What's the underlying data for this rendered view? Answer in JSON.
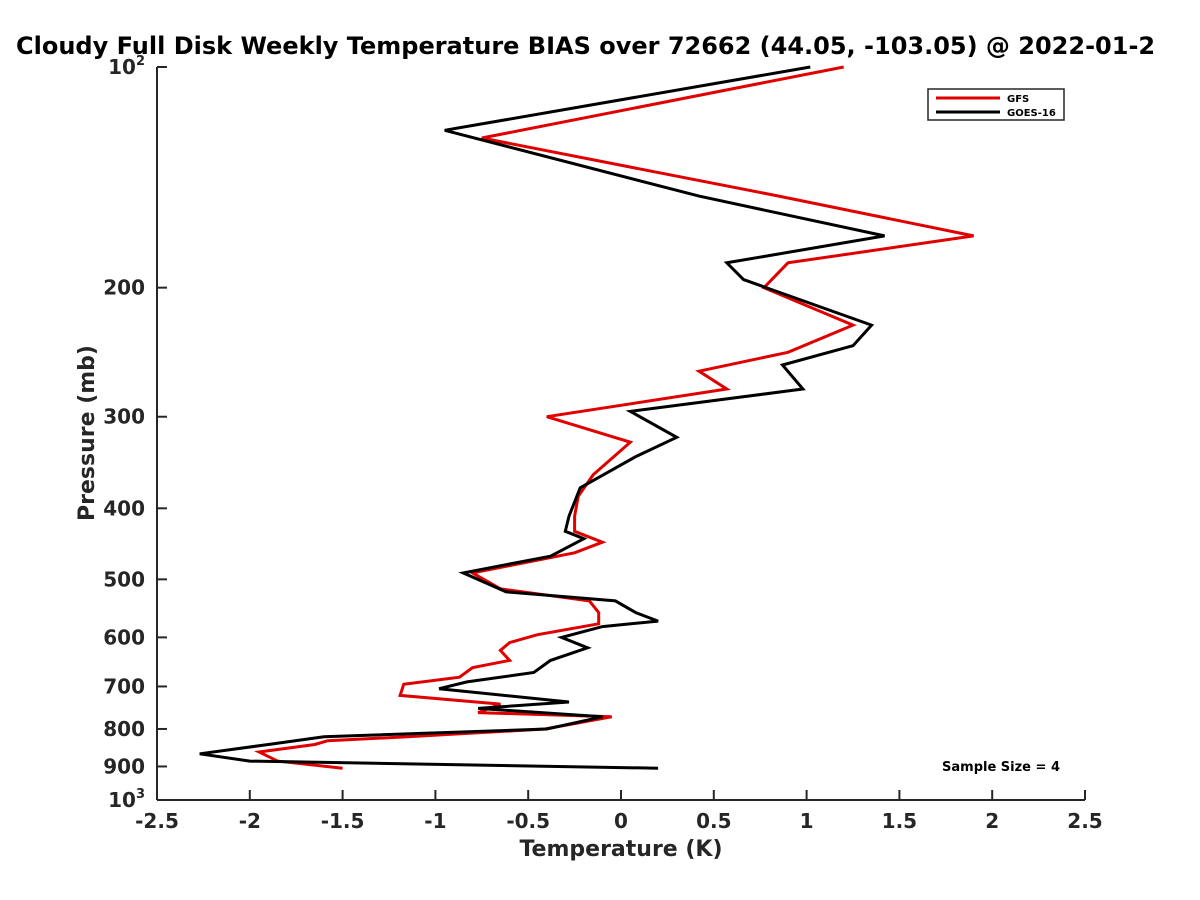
{
  "chart_data": {
    "type": "line",
    "title": "Cloudy Full Disk Weekly Temperature BIAS over 72662 (44.05, -103.05) @ 2022-01-2",
    "xlabel": "Temperature (K)",
    "ylabel": "Pressure (mb)",
    "xlim": [
      -2.5,
      2.5
    ],
    "ylim": [
      100,
      1000
    ],
    "y_scale": "log",
    "y_reversed": true,
    "x_ticks": [
      "-2.5",
      "-2",
      "-1.5",
      "-1",
      "-0.5",
      "0",
      "0.5",
      "1",
      "1.5",
      "2",
      "2.5"
    ],
    "y_ticks": [
      {
        "value": 100,
        "base": "10",
        "exp": "2"
      },
      {
        "value": 200,
        "label": "200"
      },
      {
        "value": 300,
        "label": "300"
      },
      {
        "value": 400,
        "label": "400"
      },
      {
        "value": 500,
        "label": "500"
      },
      {
        "value": 600,
        "label": "600"
      },
      {
        "value": 700,
        "label": "700"
      },
      {
        "value": 800,
        "label": "800"
      },
      {
        "value": 900,
        "label": "900"
      },
      {
        "value": 1000,
        "base": "10",
        "exp": "3"
      }
    ],
    "legend_position": "top-right",
    "series": [
      {
        "name": "GFS",
        "color": "#e00000",
        "points": [
          [
            1.2,
            100
          ],
          [
            -0.75,
            125
          ],
          [
            0.85,
            150
          ],
          [
            1.9,
            170
          ],
          [
            0.9,
            185
          ],
          [
            0.77,
            200
          ],
          [
            1.25,
            225
          ],
          [
            0.9,
            245
          ],
          [
            0.42,
            260
          ],
          [
            0.57,
            275
          ],
          [
            -0.4,
            300
          ],
          [
            0.05,
            325
          ],
          [
            -0.15,
            360
          ],
          [
            -0.23,
            385
          ],
          [
            -0.25,
            410
          ],
          [
            -0.25,
            430
          ],
          [
            -0.1,
            445
          ],
          [
            -0.25,
            460
          ],
          [
            -0.8,
            490
          ],
          [
            -0.65,
            515
          ],
          [
            -0.17,
            535
          ],
          [
            -0.12,
            555
          ],
          [
            -0.12,
            575
          ],
          [
            -0.45,
            595
          ],
          [
            -0.6,
            610
          ],
          [
            -0.65,
            625
          ],
          [
            -0.6,
            645
          ],
          [
            -0.8,
            660
          ],
          [
            -0.87,
            680
          ],
          [
            -1.17,
            695
          ],
          [
            -1.19,
            720
          ],
          [
            -0.65,
            740
          ],
          [
            -0.77,
            760
          ],
          [
            -0.05,
            770
          ],
          [
            -0.41,
            800
          ],
          [
            -1.15,
            820
          ],
          [
            -1.58,
            830
          ],
          [
            -1.65,
            840
          ],
          [
            -1.95,
            860
          ],
          [
            -1.85,
            885
          ],
          [
            -1.5,
            905
          ]
        ]
      },
      {
        "name": "GOES-16",
        "color": "#000000",
        "points": [
          [
            1.02,
            100
          ],
          [
            -0.95,
            122
          ],
          [
            0.42,
            150
          ],
          [
            1.42,
            170
          ],
          [
            0.57,
            185
          ],
          [
            0.66,
            195
          ],
          [
            1.35,
            225
          ],
          [
            1.25,
            240
          ],
          [
            0.87,
            255
          ],
          [
            0.98,
            275
          ],
          [
            0.05,
            295
          ],
          [
            0.3,
            320
          ],
          [
            0.08,
            340
          ],
          [
            -0.22,
            375
          ],
          [
            -0.28,
            410
          ],
          [
            -0.3,
            430
          ],
          [
            -0.2,
            440
          ],
          [
            -0.38,
            465
          ],
          [
            -0.85,
            490
          ],
          [
            -0.62,
            520
          ],
          [
            -0.03,
            535
          ],
          [
            0.08,
            555
          ],
          [
            0.2,
            570
          ],
          [
            -0.1,
            580
          ],
          [
            -0.32,
            600
          ],
          [
            -0.18,
            620
          ],
          [
            -0.38,
            645
          ],
          [
            -0.47,
            670
          ],
          [
            -0.83,
            690
          ],
          [
            -0.98,
            705
          ],
          [
            -0.28,
            735
          ],
          [
            -0.77,
            750
          ],
          [
            -0.1,
            770
          ],
          [
            -0.4,
            800
          ],
          [
            -1.6,
            820
          ],
          [
            -1.9,
            840
          ],
          [
            -2.27,
            865
          ],
          [
            -2.0,
            885
          ],
          [
            0.2,
            905
          ]
        ]
      }
    ],
    "annotations": [
      {
        "text": "Sample Size = 4"
      }
    ]
  }
}
